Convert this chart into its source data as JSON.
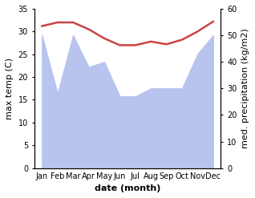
{
  "months": [
    "Jan",
    "Feb",
    "Mar",
    "Apr",
    "May",
    "Jun",
    "Jul",
    "Aug",
    "Sep",
    "Oct",
    "Nov",
    "Dec"
  ],
  "max_temp": [
    31.2,
    32.0,
    32.0,
    30.5,
    28.5,
    27.0,
    27.0,
    27.8,
    27.2,
    28.2,
    30.0,
    32.2
  ],
  "precipitation": [
    50.0,
    28.0,
    50.0,
    38.0,
    40.0,
    27.0,
    27.0,
    30.0,
    30.0,
    30.0,
    43.0,
    50.0
  ],
  "temp_color": "#cc4444",
  "precip_color": "#b8c4ee",
  "temp_ylim": [
    0,
    35
  ],
  "precip_ylim": [
    0,
    60
  ],
  "temp_yticks": [
    0,
    5,
    10,
    15,
    20,
    25,
    30,
    35
  ],
  "precip_yticks": [
    0,
    10,
    20,
    30,
    40,
    50,
    60
  ],
  "xlabel": "date (month)",
  "ylabel_left": "max temp (C)",
  "ylabel_right": "med. precipitation (kg/m2)",
  "figsize": [
    3.18,
    2.47
  ],
  "dpi": 100
}
